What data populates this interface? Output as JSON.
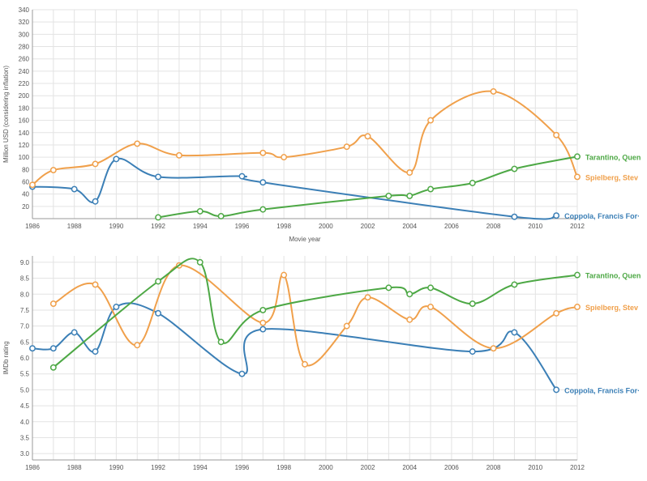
{
  "colors": {
    "coppola": "#3b7fb6",
    "spielberg": "#f0a04b",
    "tarantino": "#4da845",
    "grid": "#e3e3e3"
  },
  "chart_data": [
    {
      "type": "line",
      "xlabel": "Movie year",
      "ylabel": "Million USD (considering inflation)",
      "xlim": [
        1986,
        2012
      ],
      "ylim": [
        0,
        340
      ],
      "xticks": [
        "1986",
        "1988",
        "1990",
        "1992",
        "1994",
        "1996",
        "1998",
        "2000",
        "2002",
        "2004",
        "2006",
        "2008",
        "2010",
        "2012"
      ],
      "yticks": [
        "20",
        "40",
        "60",
        "80",
        "100",
        "120",
        "140",
        "160",
        "180",
        "200",
        "220",
        "240",
        "260",
        "280",
        "300",
        "320",
        "340"
      ],
      "grid": true,
      "series": [
        {
          "name": "Coppola, Francis For·",
          "color_key": "coppola",
          "points": [
            [
              1986,
              52
            ],
            [
              1988,
              48
            ],
            [
              1989,
              28
            ],
            [
              1990,
              97
            ],
            [
              1992,
              68
            ],
            [
              1996,
              69
            ],
            [
              1997,
              59
            ],
            [
              2009,
              3
            ],
            [
              2011,
              5
            ]
          ]
        },
        {
          "name": "Spielberg, Stev",
          "color_key": "spielberg",
          "points": [
            [
              1986,
              55
            ],
            [
              1987,
              79
            ],
            [
              1989,
              89
            ],
            [
              1991,
              122
            ],
            [
              1993,
              103
            ],
            [
              1997,
              107
            ],
            [
              1998,
              100
            ],
            [
              2001,
              117
            ],
            [
              2002,
              134
            ],
            [
              2004,
              75
            ],
            [
              2005,
              160
            ],
            [
              2008,
              207
            ],
            [
              2011,
              136
            ],
            [
              2012,
              68
            ]
          ]
        },
        {
          "name": "Tarantino, Quen",
          "color_key": "tarantino",
          "points": [
            [
              1992,
              2
            ],
            [
              1994,
              12
            ],
            [
              1995,
              4
            ],
            [
              1997,
              15
            ],
            [
              2003,
              37
            ],
            [
              2004,
              37
            ],
            [
              2005,
              48
            ],
            [
              2007,
              58
            ],
            [
              2009,
              81
            ],
            [
              2012,
              101
            ]
          ]
        }
      ]
    },
    {
      "type": "line",
      "xlabel": "",
      "ylabel": "IMDb rating",
      "xlim": [
        1986,
        2012
      ],
      "ylim": [
        2.8,
        9.2
      ],
      "xticks": [
        "1986",
        "1988",
        "1990",
        "1992",
        "1994",
        "1996",
        "1998",
        "2000",
        "2002",
        "2004",
        "2006",
        "2008",
        "2010",
        "2012"
      ],
      "yticks": [
        "3.0",
        "3.5",
        "4.0",
        "4.5",
        "5.0",
        "5.5",
        "6.0",
        "6.5",
        "7.0",
        "7.5",
        "8.0",
        "8.5",
        "9.0"
      ],
      "grid": true,
      "series": [
        {
          "name": "Coppola, Francis For·",
          "color_key": "coppola",
          "points": [
            [
              1986,
              6.3
            ],
            [
              1987,
              6.3
            ],
            [
              1988,
              6.8
            ],
            [
              1989,
              6.2
            ],
            [
              1990,
              7.6
            ],
            [
              1992,
              7.4
            ],
            [
              1996,
              5.5
            ],
            [
              1997,
              6.9
            ],
            [
              2007,
              6.2
            ],
            [
              2009,
              6.8
            ],
            [
              2011,
              5.0
            ]
          ]
        },
        {
          "name": "Spielberg, Stev",
          "color_key": "spielberg",
          "points": [
            [
              1987,
              7.7
            ],
            [
              1989,
              8.3
            ],
            [
              1991,
              6.4
            ],
            [
              1993,
              8.9
            ],
            [
              1997,
              7.1
            ],
            [
              1998,
              8.6
            ],
            [
              1999,
              5.8
            ],
            [
              2001,
              7.0
            ],
            [
              2002,
              7.9
            ],
            [
              2004,
              7.2
            ],
            [
              2005,
              7.6
            ],
            [
              2008,
              6.3
            ],
            [
              2011,
              7.4
            ],
            [
              2012,
              7.6
            ]
          ]
        },
        {
          "name": "Tarantino, Quen",
          "color_key": "tarantino",
          "points": [
            [
              1987,
              5.7
            ],
            [
              1992,
              8.4
            ],
            [
              1994,
              9.0
            ],
            [
              1995,
              6.5
            ],
            [
              1997,
              7.5
            ],
            [
              2003,
              8.2
            ],
            [
              2004,
              8.0
            ],
            [
              2005,
              8.2
            ],
            [
              2007,
              7.7
            ],
            [
              2009,
              8.3
            ],
            [
              2012,
              8.6
            ]
          ]
        }
      ]
    }
  ]
}
